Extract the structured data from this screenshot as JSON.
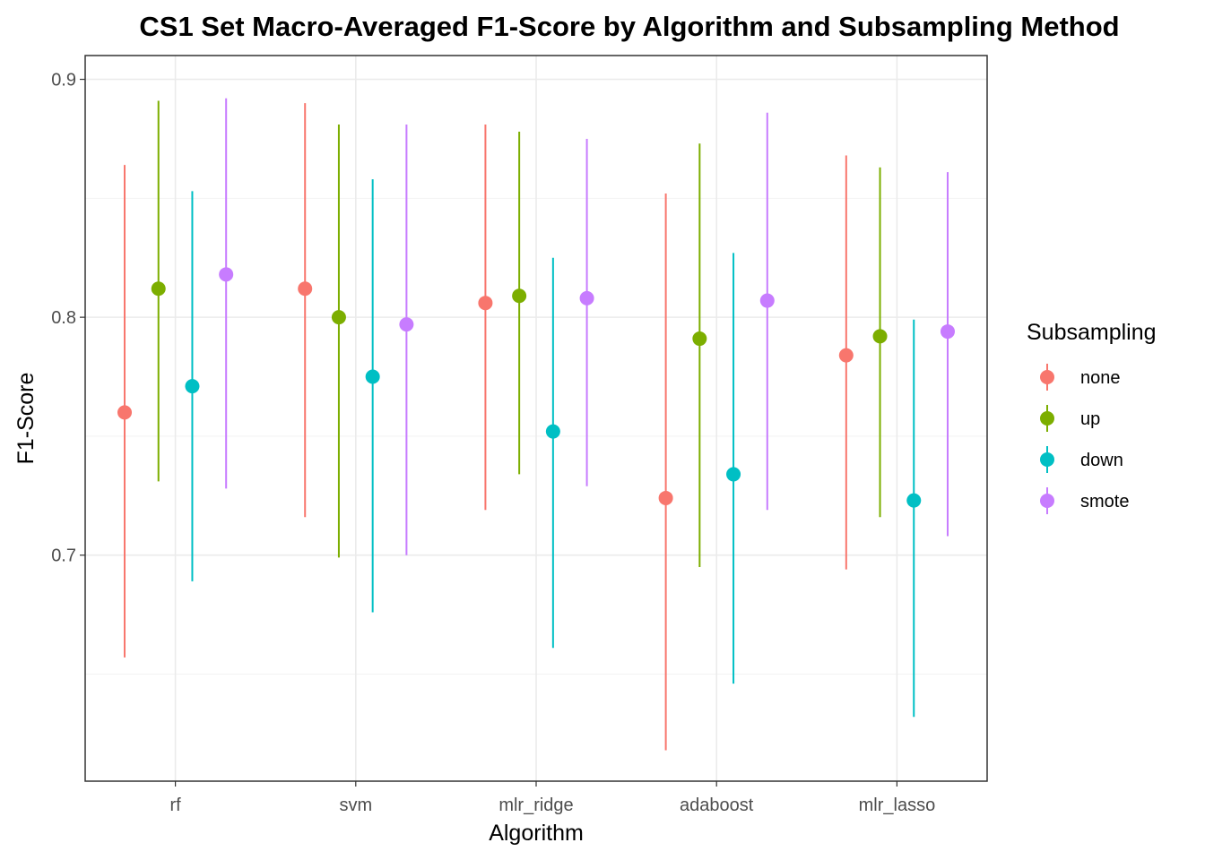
{
  "chart_data": {
    "type": "scatter",
    "title": "CS1 Set Macro-Averaged F1-Score by Algorithm and Subsampling Method",
    "xlabel": "Algorithm",
    "ylabel": "F1-Score",
    "ylim": [
      0.605,
      0.91
    ],
    "yticks": [
      "0.7",
      "0.8",
      "0.9"
    ],
    "ytick_values": [
      0.7,
      0.8,
      0.9
    ],
    "categories": [
      "rf",
      "svm",
      "mlr_ridge",
      "adaboost",
      "mlr_lasso"
    ],
    "grid": true,
    "legend": {
      "title": "Subsampling",
      "position": "right"
    },
    "series": [
      {
        "name": "none",
        "color": "#F8766D",
        "values": [
          0.76,
          0.812,
          0.806,
          0.724,
          0.784
        ],
        "lower": [
          0.657,
          0.716,
          0.719,
          0.618,
          0.694
        ],
        "upper": [
          0.864,
          0.89,
          0.881,
          0.852,
          0.868
        ]
      },
      {
        "name": "up",
        "color": "#7CAE00",
        "values": [
          0.812,
          0.8,
          0.809,
          0.791,
          0.792
        ],
        "lower": [
          0.731,
          0.699,
          0.734,
          0.695,
          0.716
        ],
        "upper": [
          0.891,
          0.881,
          0.878,
          0.873,
          0.863
        ]
      },
      {
        "name": "down",
        "color": "#00BFC4",
        "values": [
          0.771,
          0.775,
          0.752,
          0.734,
          0.723
        ],
        "lower": [
          0.689,
          0.676,
          0.661,
          0.646,
          0.632
        ],
        "upper": [
          0.853,
          0.858,
          0.825,
          0.827,
          0.799
        ]
      },
      {
        "name": "smote",
        "color": "#C77CFF",
        "values": [
          0.818,
          0.797,
          0.808,
          0.807,
          0.794
        ],
        "lower": [
          0.728,
          0.7,
          0.729,
          0.719,
          0.708
        ],
        "upper": [
          0.892,
          0.881,
          0.875,
          0.886,
          0.861
        ]
      }
    ]
  }
}
